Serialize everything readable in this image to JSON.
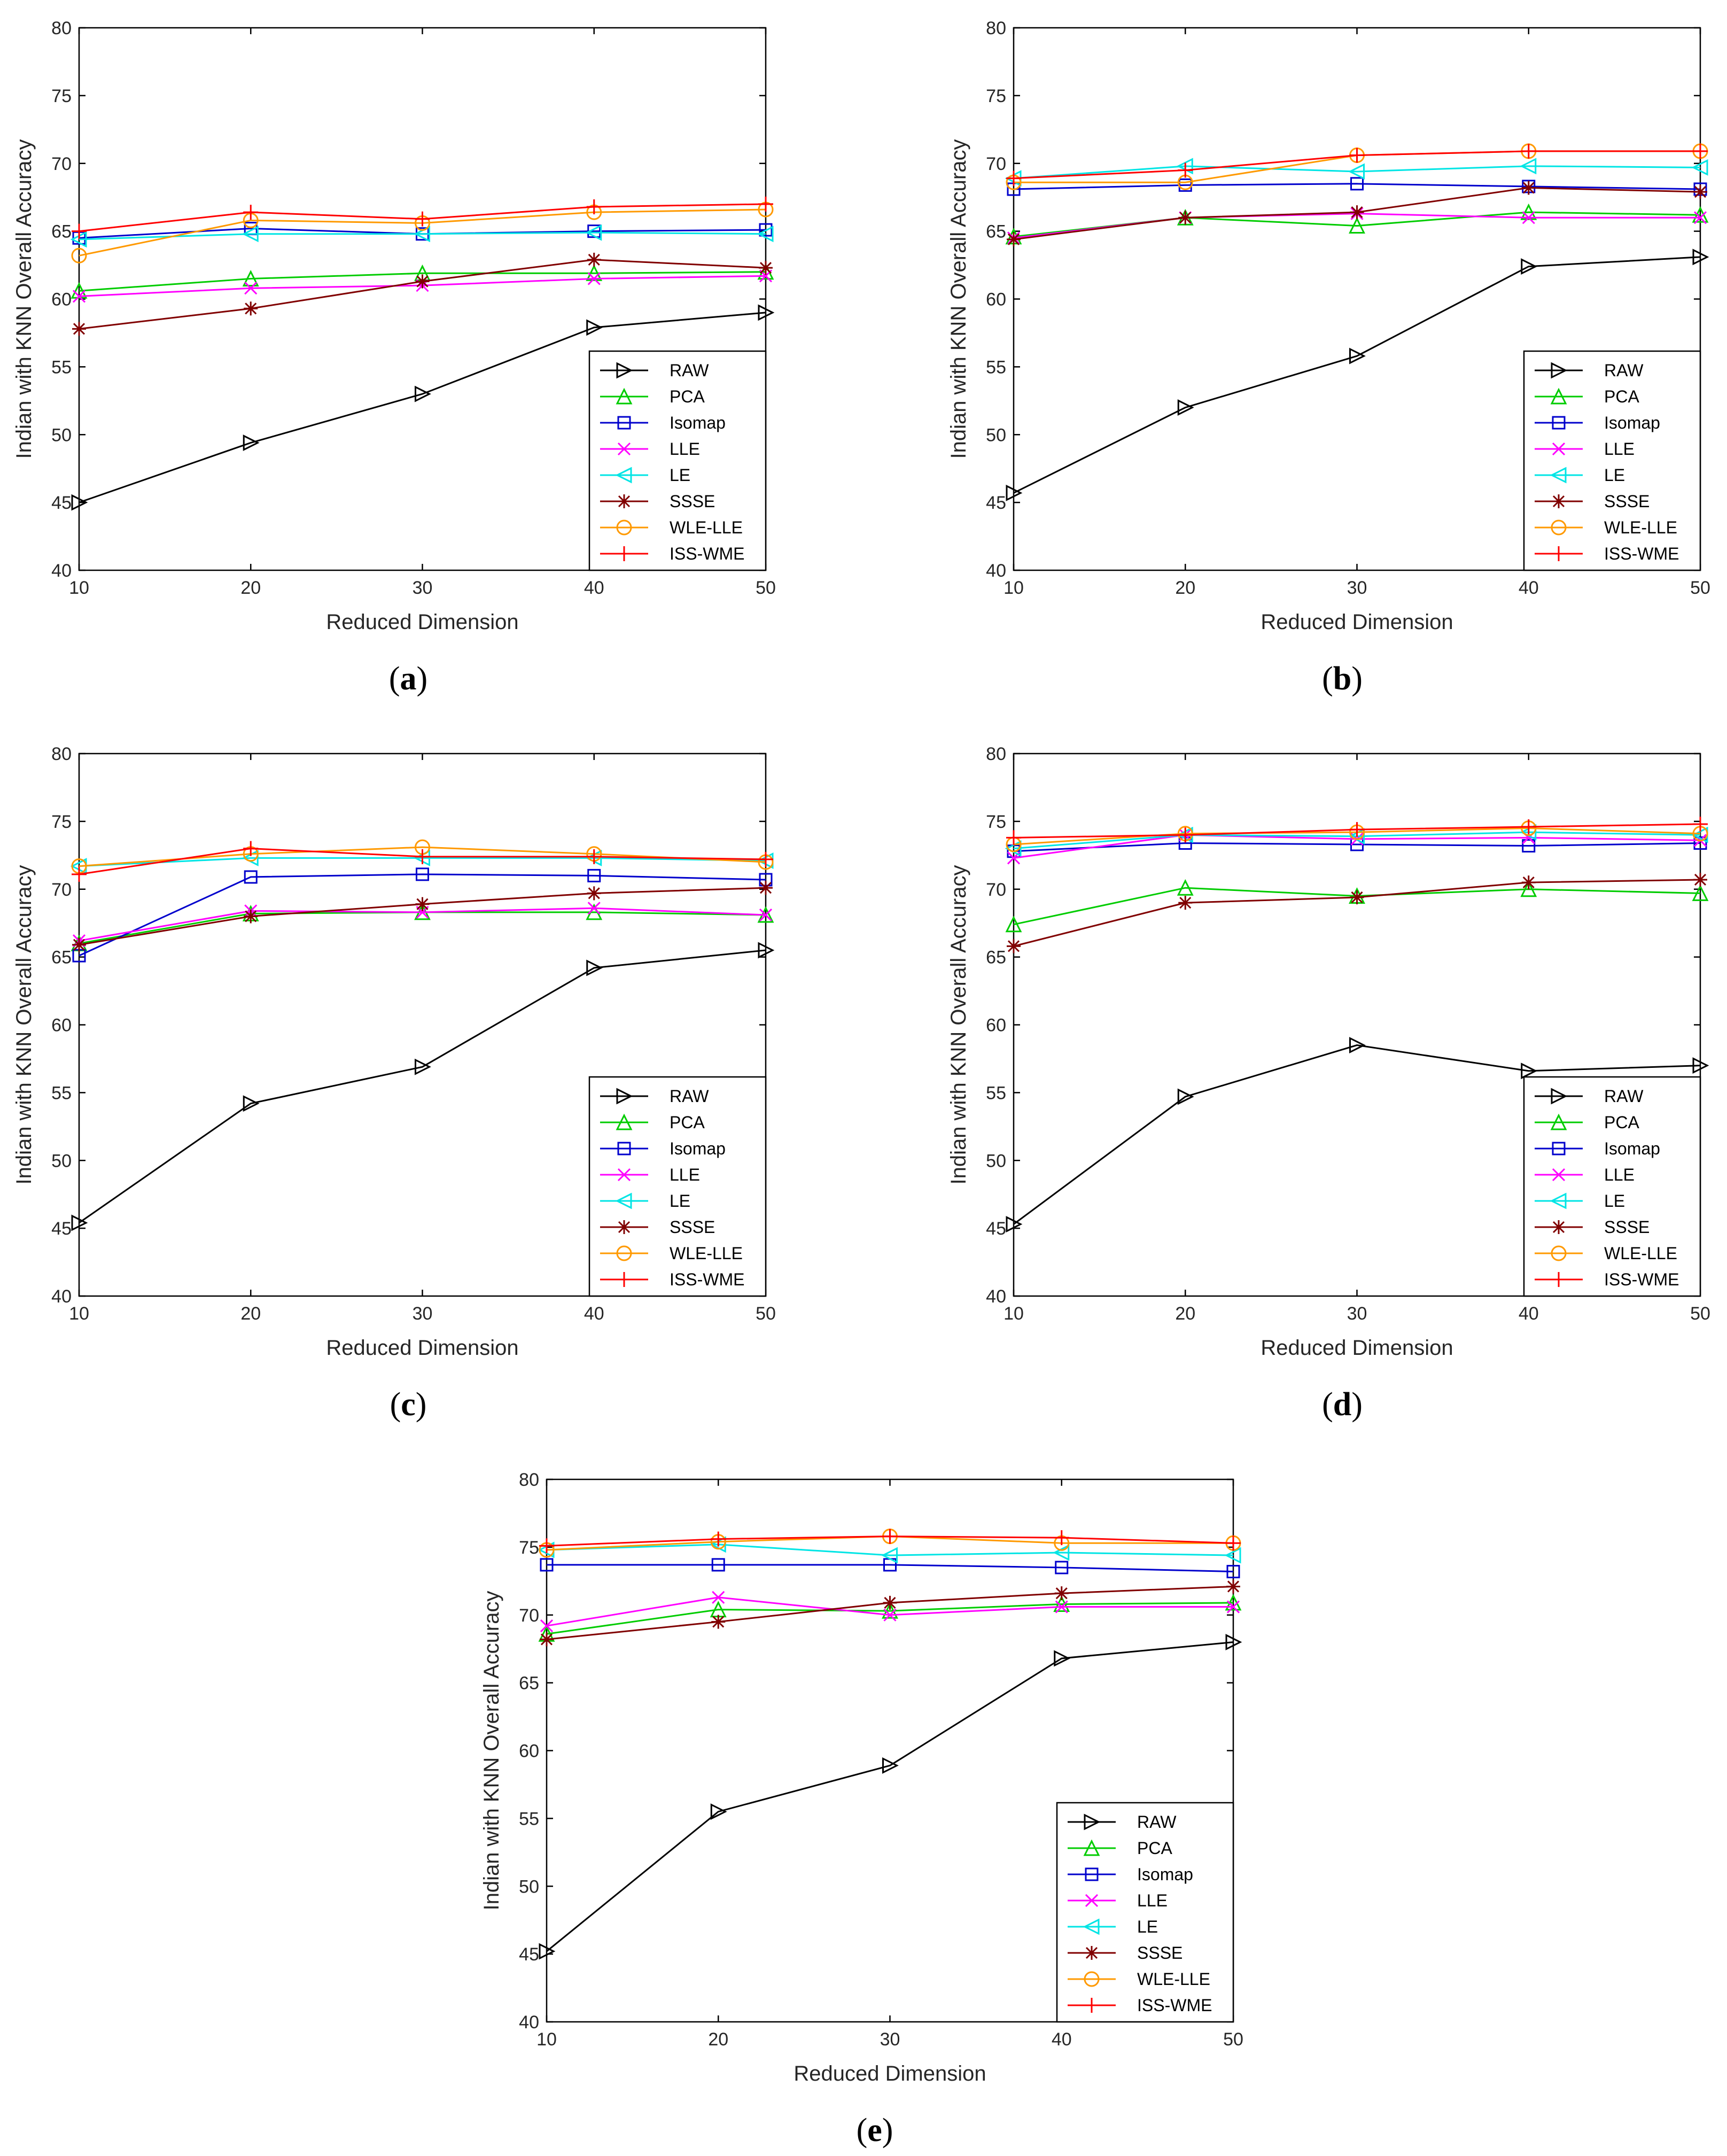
{
  "chart_data": [
    {
      "panel": "a",
      "type": "line",
      "xlabel": "Reduced Dimension",
      "ylabel": "Indian with KNN Overall Accuracy",
      "x": [
        10,
        20,
        30,
        40,
        50
      ],
      "xticks": [
        10,
        20,
        30,
        40,
        50
      ],
      "yticks": [
        40,
        45,
        50,
        55,
        60,
        65,
        70,
        75,
        80
      ],
      "ylim": [
        40,
        80
      ],
      "legend_position": "bottom-right",
      "series": [
        {
          "name": "RAW",
          "color": "#000000",
          "marker": "triangle-right",
          "values": [
            45.0,
            49.4,
            53.0,
            57.9,
            59.0
          ]
        },
        {
          "name": "PCA",
          "color": "#00cc00",
          "marker": "triangle-up",
          "values": [
            60.6,
            61.5,
            61.9,
            61.9,
            62.0
          ]
        },
        {
          "name": "Isomap",
          "color": "#0000cc",
          "marker": "square",
          "values": [
            64.5,
            65.2,
            64.8,
            65.0,
            65.1
          ]
        },
        {
          "name": "LLE",
          "color": "#ff00ff",
          "marker": "x",
          "values": [
            60.2,
            60.8,
            61.0,
            61.5,
            61.7
          ]
        },
        {
          "name": "LE",
          "color": "#00e5e5",
          "marker": "triangle-left",
          "values": [
            64.4,
            64.8,
            64.8,
            64.9,
            64.8
          ]
        },
        {
          "name": "SSSE",
          "color": "#800000",
          "marker": "star",
          "values": [
            57.8,
            59.3,
            61.3,
            62.9,
            62.3
          ]
        },
        {
          "name": "WLE-LLE",
          "color": "#ff9900",
          "marker": "circle",
          "values": [
            63.2,
            65.8,
            65.6,
            66.4,
            66.6
          ]
        },
        {
          "name": "ISS-WME",
          "color": "#ff0000",
          "marker": "plus",
          "values": [
            65.0,
            66.4,
            65.9,
            66.8,
            67.0
          ]
        }
      ]
    },
    {
      "panel": "b",
      "type": "line",
      "xlabel": "Reduced Dimension",
      "ylabel": "Indian with KNN Overall Accuracy",
      "x": [
        10,
        20,
        30,
        40,
        50
      ],
      "xticks": [
        10,
        20,
        30,
        40,
        50
      ],
      "yticks": [
        40,
        45,
        50,
        55,
        60,
        65,
        70,
        75,
        80
      ],
      "ylim": [
        40,
        80
      ],
      "legend_position": "bottom-right",
      "series": [
        {
          "name": "RAW",
          "color": "#000000",
          "marker": "triangle-right",
          "values": [
            45.7,
            52.0,
            55.8,
            62.4,
            63.1
          ]
        },
        {
          "name": "PCA",
          "color": "#00cc00",
          "marker": "triangle-up",
          "values": [
            64.6,
            66.0,
            65.4,
            66.4,
            66.2
          ]
        },
        {
          "name": "Isomap",
          "color": "#0000cc",
          "marker": "square",
          "values": [
            68.1,
            68.4,
            68.5,
            68.3,
            68.1
          ]
        },
        {
          "name": "LLE",
          "color": "#ff00ff",
          "marker": "x",
          "values": [
            64.5,
            66.0,
            66.3,
            66.0,
            66.0
          ]
        },
        {
          "name": "LE",
          "color": "#00e5e5",
          "marker": "triangle-left",
          "values": [
            68.9,
            69.8,
            69.4,
            69.8,
            69.7
          ]
        },
        {
          "name": "SSSE",
          "color": "#800000",
          "marker": "star",
          "values": [
            64.4,
            66.0,
            66.4,
            68.2,
            67.9
          ]
        },
        {
          "name": "WLE-LLE",
          "color": "#ff9900",
          "marker": "circle",
          "values": [
            68.6,
            68.6,
            70.6,
            70.9,
            70.9
          ]
        },
        {
          "name": "ISS-WME",
          "color": "#ff0000",
          "marker": "plus",
          "values": [
            68.9,
            69.5,
            70.6,
            70.9,
            70.9
          ]
        }
      ]
    },
    {
      "panel": "c",
      "type": "line",
      "xlabel": "Reduced Dimension",
      "ylabel": "Indian with KNN Overall Accuracy",
      "x": [
        10,
        20,
        30,
        40,
        50
      ],
      "xticks": [
        10,
        20,
        30,
        40,
        50
      ],
      "yticks": [
        40,
        45,
        50,
        55,
        60,
        65,
        70,
        75,
        80
      ],
      "ylim": [
        40,
        80
      ],
      "legend_position": "bottom-right",
      "series": [
        {
          "name": "RAW",
          "color": "#000000",
          "marker": "triangle-right",
          "values": [
            45.4,
            54.2,
            56.9,
            64.2,
            65.5
          ]
        },
        {
          "name": "PCA",
          "color": "#00cc00",
          "marker": "triangle-up",
          "values": [
            66.0,
            68.2,
            68.3,
            68.3,
            68.1
          ]
        },
        {
          "name": "Isomap",
          "color": "#0000cc",
          "marker": "square",
          "values": [
            65.1,
            70.9,
            71.1,
            71.0,
            70.7
          ]
        },
        {
          "name": "LLE",
          "color": "#ff00ff",
          "marker": "x",
          "values": [
            66.2,
            68.4,
            68.3,
            68.6,
            68.1
          ]
        },
        {
          "name": "LE",
          "color": "#00e5e5",
          "marker": "triangle-left",
          "values": [
            71.7,
            72.3,
            72.3,
            72.3,
            72.1
          ]
        },
        {
          "name": "SSSE",
          "color": "#800000",
          "marker": "star",
          "values": [
            65.9,
            68.0,
            68.9,
            69.7,
            70.1
          ]
        },
        {
          "name": "WLE-LLE",
          "color": "#ff9900",
          "marker": "circle",
          "values": [
            71.7,
            72.6,
            73.1,
            72.6,
            72.0
          ]
        },
        {
          "name": "ISS-WME",
          "color": "#ff0000",
          "marker": "plus",
          "values": [
            71.1,
            73.0,
            72.4,
            72.4,
            72.2
          ]
        }
      ]
    },
    {
      "panel": "d",
      "type": "line",
      "xlabel": "Reduced Dimension",
      "ylabel": "Indian with KNN Overall Accuracy",
      "x": [
        10,
        20,
        30,
        40,
        50
      ],
      "xticks": [
        10,
        20,
        30,
        40,
        50
      ],
      "yticks": [
        40,
        45,
        50,
        55,
        60,
        65,
        70,
        75,
        80
      ],
      "ylim": [
        40,
        80
      ],
      "legend_position": "bottom-right",
      "series": [
        {
          "name": "RAW",
          "color": "#000000",
          "marker": "triangle-right",
          "values": [
            45.3,
            54.7,
            58.5,
            56.6,
            57.0
          ]
        },
        {
          "name": "PCA",
          "color": "#00cc00",
          "marker": "triangle-up",
          "values": [
            67.4,
            70.1,
            69.5,
            70.0,
            69.7
          ]
        },
        {
          "name": "Isomap",
          "color": "#0000cc",
          "marker": "square",
          "values": [
            72.8,
            73.4,
            73.3,
            73.2,
            73.4
          ]
        },
        {
          "name": "LLE",
          "color": "#ff00ff",
          "marker": "x",
          "values": [
            72.3,
            74.0,
            73.7,
            73.8,
            73.6
          ]
        },
        {
          "name": "LE",
          "color": "#00e5e5",
          "marker": "triangle-left",
          "values": [
            73.0,
            74.0,
            73.9,
            74.2,
            74.0
          ]
        },
        {
          "name": "SSSE",
          "color": "#800000",
          "marker": "star",
          "values": [
            65.8,
            69.0,
            69.4,
            70.5,
            70.7
          ]
        },
        {
          "name": "WLE-LLE",
          "color": "#ff9900",
          "marker": "circle",
          "values": [
            73.3,
            74.1,
            74.2,
            74.5,
            74.1
          ]
        },
        {
          "name": "ISS-WME",
          "color": "#ff0000",
          "marker": "plus",
          "values": [
            73.8,
            74.0,
            74.4,
            74.6,
            74.8
          ]
        }
      ]
    },
    {
      "panel": "e",
      "type": "line",
      "xlabel": "Reduced Dimension",
      "ylabel": "Indian with KNN Overall Accuracy",
      "x": [
        10,
        20,
        30,
        40,
        50
      ],
      "xticks": [
        10,
        20,
        30,
        40,
        50
      ],
      "yticks": [
        40,
        45,
        50,
        55,
        60,
        65,
        70,
        75,
        80
      ],
      "ylim": [
        40,
        80
      ],
      "legend_position": "bottom-right",
      "series": [
        {
          "name": "RAW",
          "color": "#000000",
          "marker": "triangle-right",
          "values": [
            45.2,
            55.5,
            58.9,
            66.8,
            68.0
          ]
        },
        {
          "name": "PCA",
          "color": "#00cc00",
          "marker": "triangle-up",
          "values": [
            68.6,
            70.4,
            70.3,
            70.8,
            70.9
          ]
        },
        {
          "name": "Isomap",
          "color": "#0000cc",
          "marker": "square",
          "values": [
            73.7,
            73.7,
            73.7,
            73.5,
            73.2
          ]
        },
        {
          "name": "LLE",
          "color": "#ff00ff",
          "marker": "x",
          "values": [
            69.2,
            71.3,
            70.0,
            70.6,
            70.6
          ]
        },
        {
          "name": "LE",
          "color": "#00e5e5",
          "marker": "triangle-left",
          "values": [
            74.8,
            75.2,
            74.4,
            74.6,
            74.4
          ]
        },
        {
          "name": "SSSE",
          "color": "#800000",
          "marker": "star",
          "values": [
            68.2,
            69.5,
            70.9,
            71.6,
            72.1
          ]
        },
        {
          "name": "WLE-LLE",
          "color": "#ff9900",
          "marker": "circle",
          "values": [
            74.8,
            75.4,
            75.8,
            75.3,
            75.3
          ]
        },
        {
          "name": "ISS-WME",
          "color": "#ff0000",
          "marker": "plus",
          "values": [
            75.1,
            75.6,
            75.8,
            75.7,
            75.3
          ]
        }
      ]
    }
  ]
}
